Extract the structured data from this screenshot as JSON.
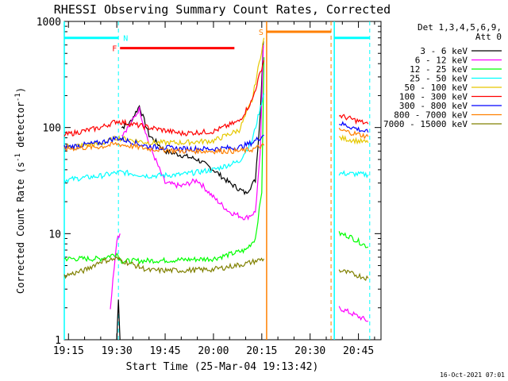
{
  "chart_data": {
    "type": "line",
    "title": "RHESSI Observing Summary Count Rates, Corrected",
    "xlabel": "Start Time (25-Mar-04 19:13:42)",
    "ylabel": "Corrected Count Rate (s⁻¹ detector⁻¹)",
    "ylabel_main": "Corrected Count Rate (s",
    "ylabel_exp": "-1",
    "ylabel_mid": " detector",
    "ylabel_end": ")",
    "yscale": "log",
    "ylim": [
      1,
      1000
    ],
    "xlim": [
      "19:13:42",
      "20:52:00"
    ],
    "x_ticks": [
      "19:15",
      "19:30",
      "19:45",
      "20:00",
      "20:15",
      "20:30",
      "20:45"
    ],
    "y_ticks": [
      "1",
      "10",
      "100",
      "1000"
    ],
    "legend_header": [
      "Det 1,3,4,5,6,9,",
      "Att 0"
    ],
    "legend_position": "right",
    "footer": "16-Oct-2021 07:01",
    "flags": [
      {
        "label": "N",
        "meaning": "night",
        "color": "#00ffff",
        "x_start": "19:13:42",
        "x_end": "19:30:30",
        "y": 700
      },
      {
        "label": "N",
        "meaning": "night",
        "color": "#00ffff",
        "x_start": "20:37:30",
        "x_end": "20:48:30",
        "y": 700
      },
      {
        "label": "F",
        "meaning": "flare",
        "color": "#ff0000",
        "x_start": "19:31:00",
        "x_end": "20:06:30",
        "y": 560
      },
      {
        "label": "S",
        "meaning": "saa",
        "color": "#ff8000",
        "x_start": "20:16:30",
        "x_end": "20:36:30",
        "y": 800
      }
    ],
    "series": [
      {
        "name": "3 - 6 keV",
        "color": "#000000",
        "segments": [
          [
            [
              "19:30:00",
              1
            ],
            [
              "19:30:30",
              2.5
            ],
            [
              "19:31:00",
              1
            ]
          ],
          [
            [
              "19:31:30",
              100
            ],
            [
              "19:34:00",
              110
            ],
            [
              "19:37:00",
              160
            ],
            [
              "19:40:00",
              85
            ],
            [
              "19:45:00",
              60
            ],
            [
              "19:50:00",
              55
            ],
            [
              "19:55:00",
              50
            ],
            [
              "20:00:00",
              40
            ],
            [
              "20:05:00",
              30
            ],
            [
              "20:10:00",
              24
            ],
            [
              "20:13:00",
              32
            ],
            [
              "20:14:30",
              130
            ],
            [
              "20:15:30",
              650
            ]
          ]
        ]
      },
      {
        "name": "6 - 12 keV",
        "color": "#ff00ff",
        "segments": [
          [
            [
              "19:28:00",
              2
            ],
            [
              "19:30:00",
              9
            ],
            [
              "19:31:00",
              10
            ]
          ],
          [
            [
              "19:31:30",
              85
            ],
            [
              "19:34:00",
              105
            ],
            [
              "19:37:00",
              150
            ],
            [
              "19:40:00",
              70
            ],
            [
              "19:45:00",
              30
            ],
            [
              "19:50:00",
              28
            ],
            [
              "19:55:00",
              32
            ],
            [
              "20:00:00",
              22
            ],
            [
              "20:05:00",
              16
            ],
            [
              "20:10:00",
              14
            ],
            [
              "20:13:00",
              16
            ],
            [
              "20:14:30",
              55
            ],
            [
              "20:15:30",
              600
            ]
          ],
          [
            [
              "20:39:00",
              2
            ],
            [
              "20:48:00",
              1.5
            ]
          ]
        ]
      },
      {
        "name": "12 - 25 keV",
        "color": "#00ff00",
        "segments": [
          [
            [
              "19:13:42",
              5.8
            ],
            [
              "19:25:00",
              5.8
            ],
            [
              "19:30:00",
              6.5
            ],
            [
              "19:31:30",
              5.5
            ],
            [
              "19:45:00",
              5.6
            ],
            [
              "20:00:00",
              5.8
            ],
            [
              "20:10:00",
              7
            ],
            [
              "20:13:00",
              9
            ],
            [
              "20:15:00",
              25
            ],
            [
              "20:15:40",
              460
            ]
          ],
          [
            [
              "20:39:00",
              10
            ],
            [
              "20:42:00",
              9.5
            ],
            [
              "20:48:00",
              7.5
            ]
          ]
        ]
      },
      {
        "name": "25 - 50 keV",
        "color": "#00ffff",
        "segments": [
          [
            [
              "19:13:42",
              32
            ],
            [
              "19:25:00",
              35
            ],
            [
              "19:31:00",
              38
            ],
            [
              "19:40:00",
              35
            ],
            [
              "19:50:00",
              36
            ],
            [
              "20:00:00",
              40
            ],
            [
              "20:08:00",
              48
            ],
            [
              "20:12:00",
              75
            ],
            [
              "20:15:40",
              210
            ]
          ],
          [
            [
              "20:39:00",
              37
            ],
            [
              "20:48:00",
              36
            ]
          ]
        ]
      },
      {
        "name": "50 - 100 keV",
        "color": "#e6c800",
        "segments": [
          [
            [
              "19:13:42",
              66
            ],
            [
              "19:25:00",
              70
            ],
            [
              "19:30:00",
              80
            ],
            [
              "19:40:00",
              72
            ],
            [
              "19:50:00",
              72
            ],
            [
              "20:00:00",
              75
            ],
            [
              "20:08:00",
              95
            ],
            [
              "20:12:00",
              180
            ],
            [
              "20:15:40",
              700
            ]
          ],
          [
            [
              "20:39:00",
              80
            ],
            [
              "20:48:00",
              72
            ]
          ]
        ]
      },
      {
        "name": "100 - 300 keV",
        "color": "#ff0000",
        "segments": [
          [
            [
              "19:13:42",
              85
            ],
            [
              "19:25:00",
              100
            ],
            [
              "19:30:00",
              115
            ],
            [
              "19:40:00",
              100
            ],
            [
              "19:50:00",
              88
            ],
            [
              "20:00:00",
              92
            ],
            [
              "20:08:00",
              115
            ],
            [
              "20:12:00",
              180
            ],
            [
              "20:15:40",
              430
            ]
          ],
          [
            [
              "20:39:00",
              130
            ],
            [
              "20:48:00",
              108
            ]
          ]
        ]
      },
      {
        "name": "300 - 800 keV",
        "color": "#0000ff",
        "segments": [
          [
            [
              "19:13:42",
              65
            ],
            [
              "19:25:00",
              72
            ],
            [
              "19:30:00",
              80
            ],
            [
              "19:40:00",
              66
            ],
            [
              "19:50:00",
              63
            ],
            [
              "20:00:00",
              63
            ],
            [
              "20:08:00",
              65
            ],
            [
              "20:12:00",
              72
            ],
            [
              "20:15:40",
              85
            ]
          ],
          [
            [
              "20:39:00",
              110
            ],
            [
              "20:48:00",
              90
            ]
          ]
        ]
      },
      {
        "name": "800 - 7000 keV",
        "color": "#ff8000",
        "segments": [
          [
            [
              "19:13:42",
              63
            ],
            [
              "19:25:00",
              66
            ],
            [
              "19:30:00",
              70
            ],
            [
              "19:40:00",
              63
            ],
            [
              "19:50:00",
              60
            ],
            [
              "20:00:00",
              60
            ],
            [
              "20:08:00",
              60
            ],
            [
              "20:12:00",
              62
            ],
            [
              "20:15:40",
              68
            ]
          ],
          [
            [
              "20:39:00",
              95
            ],
            [
              "20:48:00",
              82
            ]
          ]
        ]
      },
      {
        "name": "7000 - 15000 keV",
        "color": "#808000",
        "segments": [
          [
            [
              "19:13:42",
              4
            ],
            [
              "19:20:00",
              4.5
            ],
            [
              "19:25:00",
              5.5
            ],
            [
              "19:30:00",
              5.8
            ],
            [
              "19:40:00",
              4.5
            ],
            [
              "19:50:00",
              4.5
            ],
            [
              "20:00:00",
              4.6
            ],
            [
              "20:10:00",
              5.2
            ],
            [
              "20:15:40",
              5.8
            ]
          ],
          [
            [
              "20:39:00",
              4.5
            ],
            [
              "20:48:00",
              3.8
            ]
          ]
        ]
      }
    ]
  }
}
